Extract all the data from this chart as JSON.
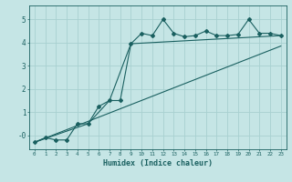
{
  "xlabel": "Humidex (Indice chaleur)",
  "bg_color": "#c5e5e5",
  "grid_color": "#a8d0d0",
  "line_color": "#1a6060",
  "xlim": [
    -0.5,
    23.5
  ],
  "ylim": [
    -0.6,
    5.6
  ],
  "xticks": [
    0,
    1,
    2,
    3,
    4,
    5,
    6,
    7,
    8,
    9,
    10,
    11,
    12,
    13,
    14,
    15,
    16,
    17,
    18,
    19,
    20,
    21,
    22,
    23
  ],
  "yticks": [
    0,
    1,
    2,
    3,
    4,
    5
  ],
  "ytick_labels": [
    "-0",
    "1",
    "2",
    "3",
    "4",
    "5"
  ],
  "series1_x": [
    0,
    1,
    2,
    3,
    4,
    5,
    6,
    7,
    8,
    9,
    10,
    11,
    12,
    13,
    14,
    15,
    16,
    17,
    18,
    19,
    20,
    21,
    22,
    23
  ],
  "series1_y": [
    -0.3,
    -0.1,
    -0.2,
    -0.2,
    0.5,
    0.5,
    1.25,
    1.5,
    1.5,
    3.95,
    4.4,
    4.3,
    5.0,
    4.4,
    4.25,
    4.3,
    4.5,
    4.3,
    4.3,
    4.35,
    5.0,
    4.4,
    4.4,
    4.3
  ],
  "series2_x": [
    0,
    23
  ],
  "series2_y": [
    -0.3,
    3.85
  ],
  "series3_x": [
    0,
    5,
    7,
    9,
    23
  ],
  "series3_y": [
    -0.3,
    0.5,
    1.5,
    3.95,
    4.3
  ]
}
